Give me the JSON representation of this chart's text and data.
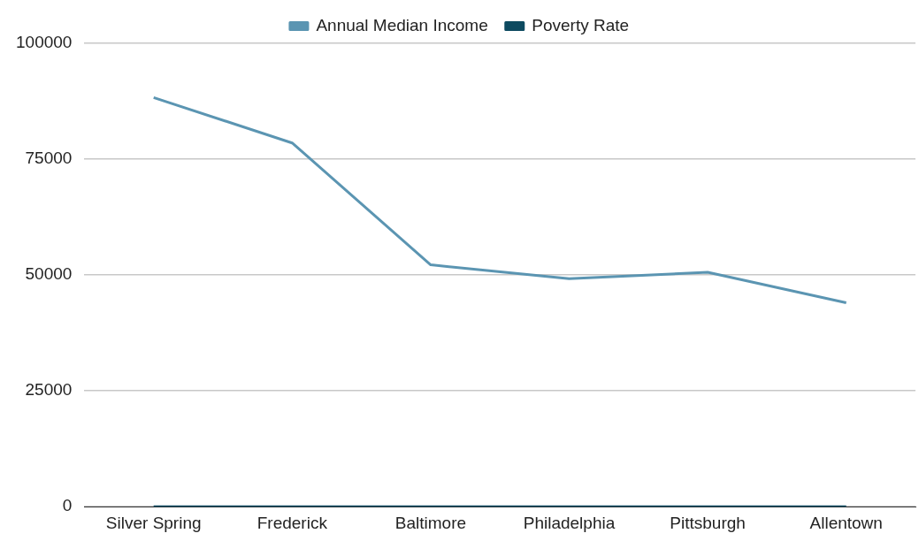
{
  "chart_data": {
    "type": "line",
    "categories": [
      "Silver Spring",
      "Frederick",
      "Baltimore",
      "Philadelphia",
      "Pittsburgh",
      "Allentown"
    ],
    "series": [
      {
        "name": "Annual Median Income",
        "color": "#5b95b2",
        "values": [
          88300,
          78500,
          52200,
          49200,
          50600,
          44000
        ]
      },
      {
        "name": "Poverty Rate",
        "color": "#0d4a60",
        "values": [
          0,
          0,
          0,
          0,
          0,
          0
        ]
      }
    ],
    "ylim": [
      0,
      100000
    ],
    "yticks": [
      0,
      25000,
      50000,
      75000,
      100000
    ],
    "grid": "y",
    "legend": "top",
    "marker": "none",
    "line_style": "solid"
  }
}
